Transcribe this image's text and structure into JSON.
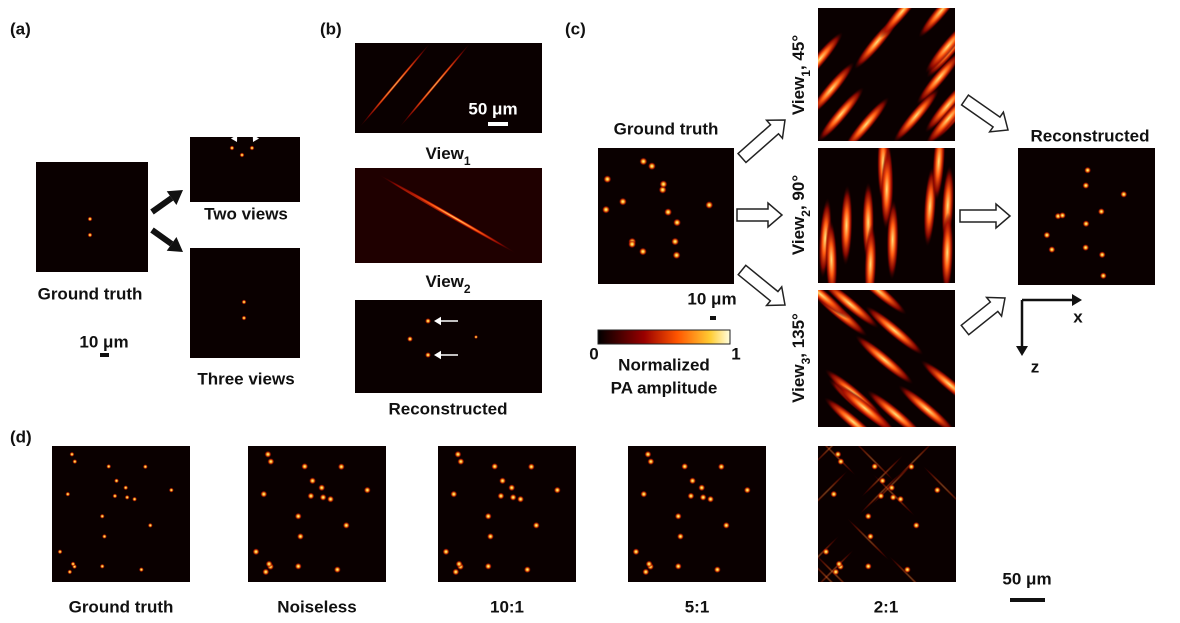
{
  "a": {
    "label": "(a)",
    "ground_truth": "Ground truth",
    "scale_bar": "10 μm",
    "two_views": "Two views",
    "three_views": "Three views"
  },
  "b": {
    "label": "(b)",
    "scale_bar": "50 μm",
    "view1": {
      "name": "View",
      "sub": "1"
    },
    "view2": {
      "name": "View",
      "sub": "2"
    },
    "reconstructed": "Reconstructed"
  },
  "c": {
    "label": "(c)",
    "ground_truth": "Ground truth",
    "scale_bar": "10 μm",
    "views": [
      {
        "name": "View",
        "sub": "1",
        "angle": ", 45°"
      },
      {
        "name": "View",
        "sub": "2",
        "angle": ", 90°"
      },
      {
        "name": "View",
        "sub": "3",
        "angle": ", 135°"
      }
    ],
    "reconstructed": "Reconstructed",
    "colorbar": {
      "min": "0",
      "max": "1",
      "title_line1": "Normalized",
      "title_line2": "PA amplitude"
    },
    "axes": {
      "x": "x",
      "z": "z"
    }
  },
  "d": {
    "label": "(d)",
    "panels": [
      "Ground truth",
      "Noiseless",
      "10:1",
      "5:1",
      "2:1"
    ],
    "scale_bar": "50 μm"
  }
}
